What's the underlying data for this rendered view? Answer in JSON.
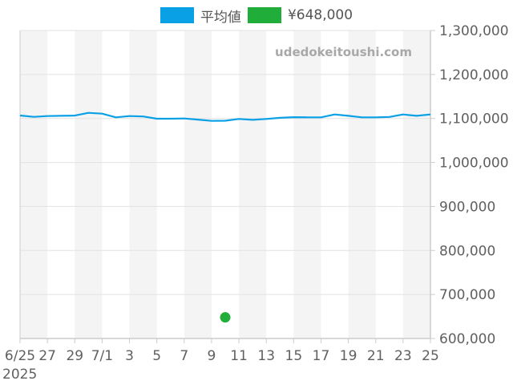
{
  "legend": {
    "items": [
      {
        "label": "平均値",
        "color": "#0aa0e6"
      },
      {
        "label": "¥648,000",
        "color": "#21ad3a"
      }
    ]
  },
  "watermark": "udedokeitoushi.com",
  "chart_data": {
    "type": "line",
    "title": "",
    "xlabel": "",
    "ylabel": "",
    "ylim": [
      600000,
      1300000
    ],
    "y_ticks": [
      "600,000",
      "700,000",
      "800,000",
      "900,000",
      "1,000,000",
      "1,100,000",
      "1,200,000",
      "1,300,000"
    ],
    "y_tick_values": [
      600000,
      700000,
      800000,
      900000,
      1000000,
      1100000,
      1200000,
      1300000
    ],
    "x_tick_labels": [
      "6/25",
      "27",
      "29",
      "7/1",
      "3",
      "5",
      "7",
      "9",
      "11",
      "13",
      "15",
      "17",
      "19",
      "21",
      "23",
      "25"
    ],
    "x_year_label": "2025",
    "grid": true,
    "legend_position": "top",
    "x": [
      "6/25",
      "6/26",
      "6/27",
      "6/28",
      "6/29",
      "6/30",
      "7/1",
      "7/2",
      "7/3",
      "7/4",
      "7/5",
      "7/6",
      "7/7",
      "7/8",
      "7/9",
      "7/10",
      "7/11",
      "7/12",
      "7/13",
      "7/14",
      "7/15",
      "7/16",
      "7/17",
      "7/18",
      "7/19",
      "7/20",
      "7/21",
      "7/22",
      "7/23",
      "7/24",
      "7/25"
    ],
    "series": [
      {
        "name": "平均値",
        "type": "line",
        "color": "#0aa0e6",
        "values": [
          1106800,
          1103700,
          1105500,
          1106000,
          1106500,
          1112800,
          1111000,
          1102600,
          1105500,
          1104500,
          1099500,
          1099500,
          1100000,
          1097500,
          1094600,
          1095000,
          1099000,
          1097000,
          1099000,
          1101500,
          1103000,
          1102500,
          1102500,
          1109200,
          1106000,
          1102500,
          1102500,
          1103500,
          1109200,
          1106000,
          1109200
        ]
      },
      {
        "name": "¥648,000",
        "type": "scatter",
        "color": "#21ad3a",
        "points": [
          {
            "x": "7/10",
            "y": 648000
          }
        ]
      }
    ]
  }
}
